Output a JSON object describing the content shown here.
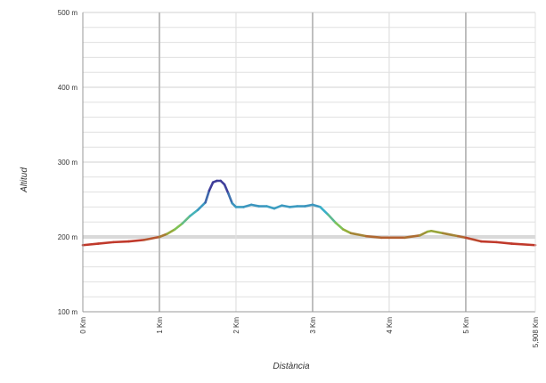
{
  "chart_data": {
    "type": "line",
    "title": "",
    "xlabel": "Distància",
    "ylabel": "Altitud",
    "xlim": [
      0,
      5.908
    ],
    "ylim": [
      100,
      500
    ],
    "x_ticks": [
      0,
      1,
      2,
      3,
      4,
      5,
      5.908
    ],
    "x_tick_labels": [
      "0 Km",
      "1 Km",
      "2 Km",
      "3 Km",
      "4 Km",
      "5 Km",
      "5,908 Km"
    ],
    "y_ticks": [
      100,
      200,
      300,
      400,
      500
    ],
    "y_tick_labels": [
      "100 m",
      "200 m",
      "300 m",
      "400 m",
      "500 m"
    ],
    "grid": true,
    "legend": "none",
    "colors": {
      "grid_minor": "#e0e0e0",
      "grid_major": "#b8b8b8",
      "reference_band": "#d9d9d9",
      "axis": "#999999",
      "low": "#c0392b",
      "mid_low": "#8cc63f",
      "mid": "#3bb0c9",
      "high": "#3f3d9a"
    },
    "series": [
      {
        "x": [
          0,
          0.2,
          0.4,
          0.6,
          0.8,
          1.0,
          1.1,
          1.2,
          1.3,
          1.4,
          1.5,
          1.6,
          1.65,
          1.7,
          1.75,
          1.8,
          1.85,
          1.9,
          1.95,
          2.0,
          2.1,
          2.2,
          2.3,
          2.4,
          2.5,
          2.6,
          2.7,
          2.8,
          2.9,
          3.0,
          3.1,
          3.2,
          3.3,
          3.4,
          3.5,
          3.7,
          3.9,
          4.0,
          4.2,
          4.4,
          4.5,
          4.55,
          4.7,
          4.9,
          5.0,
          5.2,
          5.4,
          5.6,
          5.908
        ],
        "y": [
          189,
          191,
          193,
          194,
          196,
          200,
          204,
          210,
          218,
          228,
          236,
          246,
          262,
          273,
          275,
          275,
          270,
          258,
          245,
          240,
          240,
          243,
          241,
          241,
          238,
          242,
          240,
          241,
          241,
          243,
          240,
          230,
          219,
          210,
          205,
          201,
          199,
          199,
          199,
          202,
          207,
          208,
          205,
          201,
          199,
          194,
          193,
          191,
          189
        ]
      }
    ]
  }
}
